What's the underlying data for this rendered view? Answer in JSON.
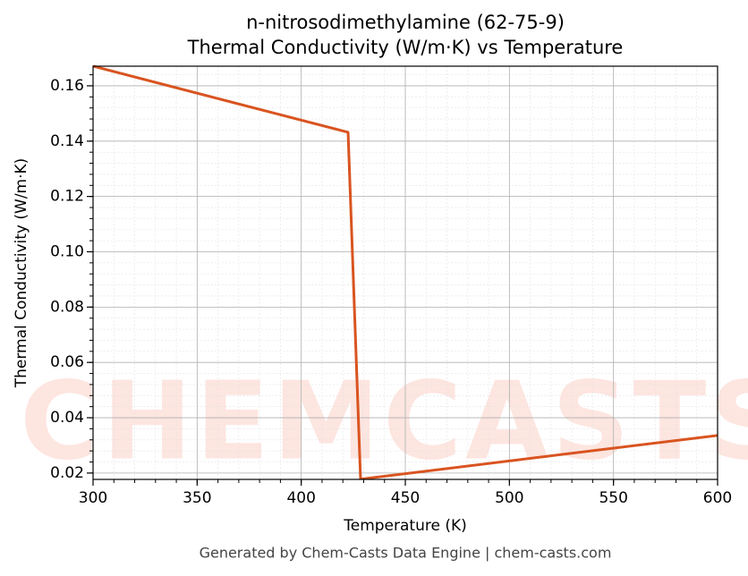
{
  "chart_data": {
    "type": "line",
    "title": "n-nitrosodimethylamine (62-75-9)",
    "subtitle": "Thermal Conductivity (W/m·K) vs Temperature",
    "x_label": "Temperature (K)",
    "y_label": "Thermal Conductivity (W/m·K)",
    "footer": "Generated by Chem-Casts Data Engine | chem-casts.com",
    "watermark": "CHEMCASTS",
    "x": [
      300,
      422.5,
      428.5,
      600
    ],
    "series": [
      {
        "name": "Thermal Conductivity",
        "color": "#d95420",
        "values": [
          0.1671,
          0.1432,
          0.0178,
          0.0336
        ]
      }
    ],
    "xlim": [
      300,
      600
    ],
    "xticks": [
      300,
      350,
      400,
      450,
      500,
      550,
      600
    ],
    "ylim": [
      0.0177,
      0.1671
    ],
    "yticks": [
      {
        "value": 0.02,
        "label": "0.02"
      },
      {
        "value": 0.04,
        "label": "0.04"
      },
      {
        "value": 0.06,
        "label": "0.06"
      },
      {
        "value": 0.08,
        "label": "0.08"
      },
      {
        "value": 0.1,
        "label": "0.10"
      },
      {
        "value": 0.12,
        "label": "0.12"
      },
      {
        "value": 0.14,
        "label": "0.14"
      },
      {
        "value": 0.16,
        "label": "0.16"
      }
    ],
    "grid": true
  }
}
